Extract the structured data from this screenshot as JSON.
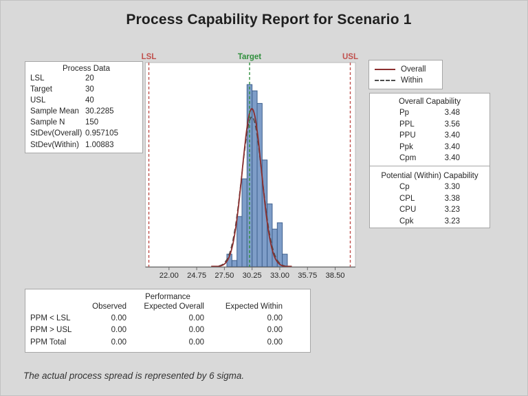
{
  "title": {
    "prefix": "Process Capability Report for ",
    "emphasis": "Scenario 1"
  },
  "process_data": {
    "title": "Process Data",
    "rows": [
      {
        "label": "LSL",
        "value": "20"
      },
      {
        "label": "Target",
        "value": "30"
      },
      {
        "label": "USL",
        "value": "40"
      },
      {
        "label": "Sample Mean",
        "value": "30.2285"
      },
      {
        "label": "Sample N",
        "value": "150"
      },
      {
        "label": "StDev(Overall)",
        "value": "0.957105"
      },
      {
        "label": "StDev(Within)",
        "value": "1.00883"
      }
    ]
  },
  "legend": {
    "items": [
      {
        "label": "Overall",
        "style": "solid",
        "color": "#8b2e2e"
      },
      {
        "label": "Within",
        "style": "dashed",
        "color": "#4d4d4d"
      }
    ]
  },
  "overall_capability": {
    "title": "Overall Capability",
    "rows": [
      {
        "label": "Pp",
        "value": "3.48"
      },
      {
        "label": "PPL",
        "value": "3.56"
      },
      {
        "label": "PPU",
        "value": "3.40"
      },
      {
        "label": "Ppk",
        "value": "3.40"
      },
      {
        "label": "Cpm",
        "value": "3.40"
      }
    ]
  },
  "within_capability": {
    "title": "Potential (Within) Capability",
    "rows": [
      {
        "label": "Cp",
        "value": "3.30"
      },
      {
        "label": "CPL",
        "value": "3.38"
      },
      {
        "label": "CPU",
        "value": "3.23"
      },
      {
        "label": "Cpk",
        "value": "3.23"
      }
    ]
  },
  "performance": {
    "title": "Performance",
    "columns": [
      "Observed",
      "Expected Overall",
      "Expected Within"
    ],
    "rows": [
      {
        "label": "PPM < LSL",
        "values": [
          "0.00",
          "0.00",
          "0.00"
        ]
      },
      {
        "label": "PPM > USL",
        "values": [
          "0.00",
          "0.00",
          "0.00"
        ]
      },
      {
        "label": "PPM Total",
        "values": [
          "0.00",
          "0.00",
          "0.00"
        ]
      }
    ]
  },
  "footnote": "The actual process spread is represented by 6 sigma.",
  "chart_data": {
    "type": "bar",
    "subtype": "capability-histogram",
    "title": "Process Capability Report for Scenario 1",
    "xlabel": "",
    "ylabel": "",
    "x_tick_labels": [
      "22.00",
      "24.75",
      "27.50",
      "30.25",
      "33.00",
      "35.75",
      "38.50"
    ],
    "x_ticks": [
      22.0,
      24.75,
      27.5,
      30.25,
      33.0,
      35.75,
      38.5
    ],
    "xlim": [
      19.6,
      40.6
    ],
    "bin_start": 27.75,
    "bin_width": 0.5,
    "frequencies": [
      2,
      1,
      8,
      14,
      29,
      28,
      26,
      17,
      10,
      6,
      7,
      2
    ],
    "sample_n": 150,
    "spec_lines": [
      {
        "label": "LSL",
        "value": 20,
        "color": "#c0504d"
      },
      {
        "label": "Target",
        "value": 30,
        "color": "#2f8f3c"
      },
      {
        "label": "USL",
        "value": 40,
        "color": "#c0504d"
      }
    ],
    "curves": [
      {
        "name": "Within",
        "mean": 30.2285,
        "stdev": 1.00883,
        "style": "dashed",
        "color": "#4d4d4d"
      },
      {
        "name": "Overall",
        "mean": 30.2285,
        "stdev": 0.957105,
        "style": "solid",
        "color": "#8b2e2e"
      }
    ],
    "bar_fill": "#7e9dc8",
    "bar_stroke": "#3f618e",
    "grid": false,
    "legend_position": "top-right"
  }
}
